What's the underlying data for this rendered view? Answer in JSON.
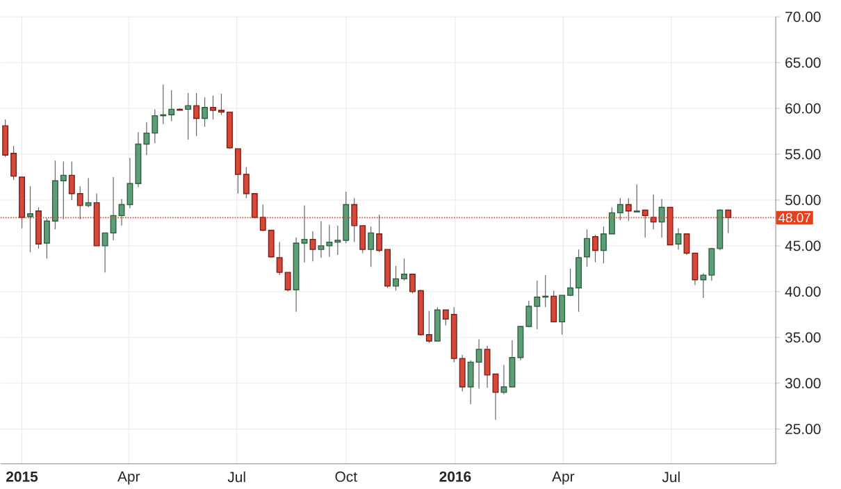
{
  "chart_data": {
    "type": "candlestick",
    "x": [
      "2014-12-18",
      "2014-12-25",
      "2015-01-01",
      "2015-01-08",
      "2015-01-15",
      "2015-01-22",
      "2015-01-29",
      "2015-02-05",
      "2015-02-12",
      "2015-02-19",
      "2015-02-26",
      "2015-03-05",
      "2015-03-12",
      "2015-03-19",
      "2015-03-26",
      "2015-04-02",
      "2015-04-09",
      "2015-04-16",
      "2015-04-23",
      "2015-04-30",
      "2015-05-07",
      "2015-05-14",
      "2015-05-21",
      "2015-05-28",
      "2015-06-04",
      "2015-06-11",
      "2015-06-18",
      "2015-06-25",
      "2015-07-02",
      "2015-07-09",
      "2015-07-16",
      "2015-07-23",
      "2015-07-30",
      "2015-08-06",
      "2015-08-13",
      "2015-08-20",
      "2015-08-27",
      "2015-09-03",
      "2015-09-10",
      "2015-09-17",
      "2015-09-24",
      "2015-10-01",
      "2015-10-08",
      "2015-10-15",
      "2015-10-22",
      "2015-10-29",
      "2015-11-05",
      "2015-11-12",
      "2015-11-19",
      "2015-11-26",
      "2015-12-03",
      "2015-12-10",
      "2015-12-17",
      "2015-12-24",
      "2015-12-31",
      "2016-01-07",
      "2016-01-14",
      "2016-01-21",
      "2016-01-28",
      "2016-02-04",
      "2016-02-11",
      "2016-02-18",
      "2016-02-25",
      "2016-03-03",
      "2016-03-10",
      "2016-03-17",
      "2016-03-24",
      "2016-03-31",
      "2016-04-07",
      "2016-04-14",
      "2016-04-21",
      "2016-04-28",
      "2016-05-05",
      "2016-05-12",
      "2016-05-19",
      "2016-05-26",
      "2016-06-02",
      "2016-06-09",
      "2016-06-16",
      "2016-06-23",
      "2016-06-30",
      "2016-07-07",
      "2016-07-14",
      "2016-07-21",
      "2016-07-28",
      "2016-08-04",
      "2016-08-11",
      "2016-08-18"
    ],
    "ohlc": [
      [
        58.1,
        58.8,
        54.7,
        54.9
      ],
      [
        55.1,
        55.9,
        52.2,
        52.6
      ],
      [
        52.5,
        52.5,
        46.9,
        48.1
      ],
      [
        48.2,
        51.5,
        44.3,
        48.5
      ],
      [
        48.8,
        49.2,
        44.7,
        45.2
      ],
      [
        45.3,
        48.0,
        43.6,
        47.7
      ],
      [
        47.7,
        54.3,
        46.8,
        52.1
      ],
      [
        52.1,
        54.2,
        47.9,
        52.7
      ],
      [
        52.7,
        54.2,
        50.0,
        50.7
      ],
      [
        50.7,
        51.5,
        47.9,
        49.4
      ],
      [
        49.4,
        52.4,
        49.2,
        49.7
      ],
      [
        49.7,
        50.7,
        45.0,
        45.0
      ],
      [
        45.0,
        46.4,
        42.1,
        46.4
      ],
      [
        46.4,
        52.5,
        45.6,
        48.3
      ],
      [
        48.3,
        50.1,
        47.2,
        49.5
      ],
      [
        49.5,
        54.6,
        49.1,
        51.8
      ],
      [
        51.8,
        57.4,
        51.4,
        56.1
      ],
      [
        56.1,
        58.5,
        54.9,
        57.3
      ],
      [
        57.3,
        59.9,
        56.2,
        59.2
      ],
      [
        59.2,
        62.6,
        58.3,
        59.3
      ],
      [
        59.3,
        62.0,
        58.6,
        59.9
      ],
      [
        59.9,
        60.0,
        59.8,
        59.8
      ],
      [
        59.9,
        61.7,
        56.6,
        60.3
      ],
      [
        60.3,
        61.7,
        57.0,
        58.9
      ],
      [
        58.9,
        61.2,
        58.0,
        60.1
      ],
      [
        60.1,
        61.4,
        58.8,
        59.8
      ],
      [
        59.8,
        61.6,
        59.3,
        59.6
      ],
      [
        59.6,
        59.6,
        55.6,
        55.7
      ],
      [
        55.6,
        55.6,
        50.7,
        52.8
      ],
      [
        52.8,
        53.6,
        50.2,
        50.7
      ],
      [
        50.7,
        50.7,
        48.0,
        48.1
      ],
      [
        48.1,
        49.5,
        46.6,
        46.7
      ],
      [
        46.7,
        46.7,
        43.7,
        43.8
      ],
      [
        43.7,
        45.4,
        41.8,
        42.1
      ],
      [
        42.1,
        42.1,
        40.0,
        40.2
      ],
      [
        40.2,
        45.9,
        37.8,
        45.3
      ],
      [
        45.3,
        49.4,
        43.2,
        45.7
      ],
      [
        45.7,
        46.6,
        43.3,
        44.6
      ],
      [
        44.6,
        47.7,
        43.7,
        45.0
      ],
      [
        45.0,
        47.3,
        43.8,
        45.4
      ],
      [
        45.4,
        47.2,
        44.0,
        45.6
      ],
      [
        45.6,
        50.9,
        45.3,
        49.5
      ],
      [
        49.5,
        50.2,
        45.4,
        47.2
      ],
      [
        47.2,
        47.2,
        44.2,
        44.6
      ],
      [
        44.6,
        47.1,
        42.7,
        46.4
      ],
      [
        46.3,
        48.4,
        44.3,
        44.5
      ],
      [
        44.6,
        44.6,
        40.4,
        40.6
      ],
      [
        40.6,
        42.8,
        40.1,
        41.4
      ],
      [
        41.4,
        43.6,
        41.2,
        41.9
      ],
      [
        41.9,
        41.9,
        39.8,
        40.0
      ],
      [
        40.1,
        40.2,
        35.2,
        35.3
      ],
      [
        35.3,
        37.9,
        34.4,
        34.6
      ],
      [
        34.6,
        38.3,
        34.6,
        38.0
      ],
      [
        38.0,
        38.0,
        36.3,
        37.0
      ],
      [
        37.5,
        38.3,
        32.3,
        32.7
      ],
      [
        32.7,
        33.1,
        29.1,
        29.6
      ],
      [
        29.6,
        32.5,
        27.7,
        32.3
      ],
      [
        32.3,
        34.8,
        29.4,
        33.7
      ],
      [
        33.7,
        34.1,
        29.5,
        30.9
      ],
      [
        31.0,
        31.0,
        26.0,
        29.0
      ],
      [
        29.0,
        32.0,
        28.8,
        29.6
      ],
      [
        29.6,
        34.7,
        29.6,
        32.8
      ],
      [
        32.8,
        36.2,
        32.5,
        36.2
      ],
      [
        36.2,
        39.0,
        36.1,
        38.4
      ],
      [
        38.4,
        41.2,
        35.9,
        39.4
      ],
      [
        39.4,
        41.8,
        38.3,
        39.5
      ],
      [
        39.5,
        40.1,
        36.7,
        36.7
      ],
      [
        36.7,
        39.6,
        35.3,
        39.6
      ],
      [
        39.6,
        42.5,
        39.5,
        40.4
      ],
      [
        40.4,
        44.6,
        37.8,
        43.7
      ],
      [
        43.8,
        46.8,
        42.7,
        45.8
      ],
      [
        46.0,
        46.2,
        43.2,
        44.5
      ],
      [
        44.5,
        47.1,
        43.1,
        46.3
      ],
      [
        46.3,
        49.2,
        46.3,
        48.6
      ],
      [
        48.6,
        50.2,
        47.8,
        49.5
      ],
      [
        49.5,
        50.2,
        47.7,
        48.8
      ],
      [
        48.7,
        51.7,
        48.7,
        48.8
      ],
      [
        48.9,
        48.9,
        45.9,
        48.3
      ],
      [
        48.1,
        50.6,
        46.8,
        47.6
      ],
      [
        47.6,
        50.1,
        45.9,
        49.2
      ],
      [
        49.2,
        49.2,
        45.1,
        45.1
      ],
      [
        45.2,
        46.9,
        44.6,
        46.3
      ],
      [
        46.3,
        46.3,
        44.0,
        44.2
      ],
      [
        44.2,
        44.2,
        40.7,
        41.3
      ],
      [
        41.3,
        42.0,
        39.3,
        41.8
      ],
      [
        41.8,
        44.8,
        41.2,
        44.7
      ],
      [
        44.7,
        49.0,
        44.5,
        48.9
      ],
      [
        48.9,
        48.9,
        46.4,
        48.07
      ]
    ],
    "xlim": [
      "2014-12-14",
      "2016-09-27"
    ],
    "xticks": [
      {
        "value": "2015-01-01",
        "label": "2015"
      },
      {
        "value": "2015-04-01",
        "label": "Apr"
      },
      {
        "value": "2015-07-01",
        "label": "Jul"
      },
      {
        "value": "2015-10-01",
        "label": "Oct"
      },
      {
        "value": "2016-01-01",
        "label": "2016"
      },
      {
        "value": "2016-04-01",
        "label": "Apr"
      },
      {
        "value": "2016-07-01",
        "label": "Jul"
      }
    ],
    "ylim": [
      21.2,
      70
    ],
    "yticks": [
      {
        "value": 25,
        "label": "25.00"
      },
      {
        "value": 30,
        "label": "30.00"
      },
      {
        "value": 35,
        "label": "35.00"
      },
      {
        "value": 40,
        "label": "40.00"
      },
      {
        "value": 45,
        "label": "45.00"
      },
      {
        "value": 50,
        "label": "50.00"
      },
      {
        "value": 55,
        "label": "55.00"
      },
      {
        "value": 60,
        "label": "60.00"
      },
      {
        "value": 65,
        "label": "65.00"
      },
      {
        "value": 70,
        "label": "70.00"
      }
    ],
    "ref_lines": [
      {
        "axis": "y",
        "value": 48.07,
        "label": "48.07",
        "color": "#e8401c",
        "line_style": "dotted"
      }
    ],
    "grid": true
  }
}
